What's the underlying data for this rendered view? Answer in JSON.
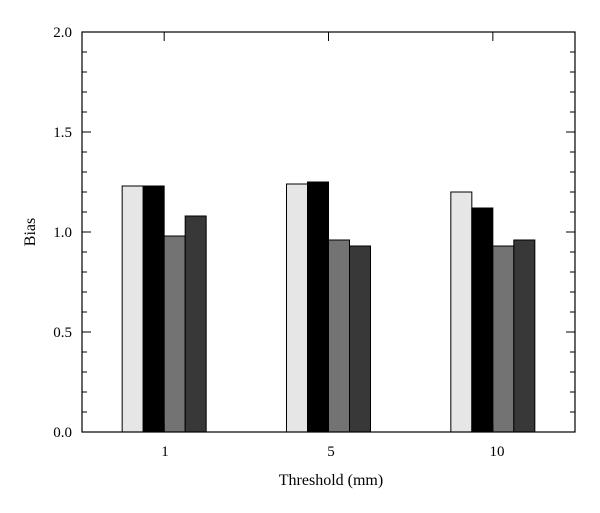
{
  "chart_data": {
    "type": "bar",
    "categories": [
      "1",
      "5",
      "10"
    ],
    "series": [
      {
        "color": "#e6e6e6",
        "values": [
          1.23,
          1.24,
          1.2
        ]
      },
      {
        "color": "#000000",
        "values": [
          1.23,
          1.25,
          1.12
        ]
      },
      {
        "color": "#737373",
        "values": [
          0.98,
          0.96,
          0.93
        ]
      },
      {
        "color": "#383838",
        "values": [
          1.08,
          0.93,
          0.96
        ]
      }
    ],
    "xlabel": "Threshold (mm)",
    "ylabel": "Bias",
    "ylim": [
      0,
      2.0
    ],
    "yticks": [
      "0.0",
      "0.5",
      "1.0",
      "1.5",
      "2.0"
    ],
    "grid": false,
    "legend": "none"
  }
}
